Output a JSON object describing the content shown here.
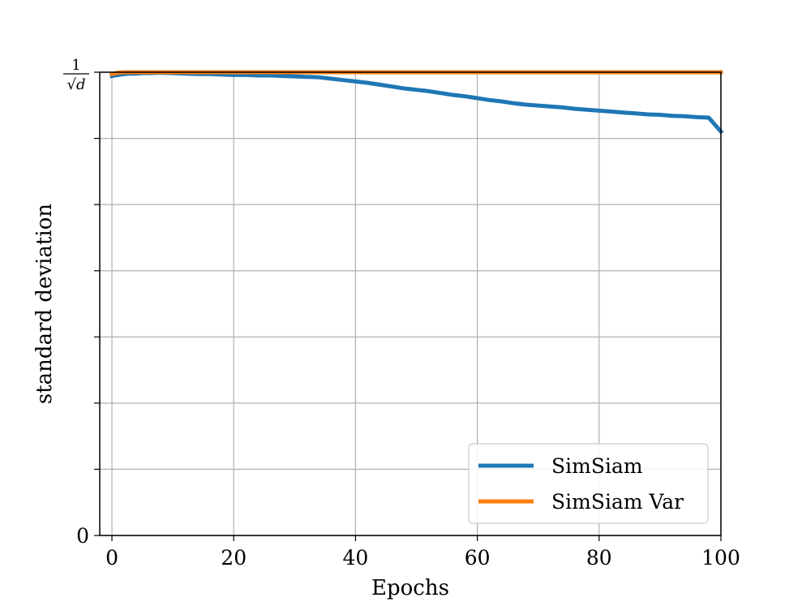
{
  "chart_data": {
    "type": "line",
    "title": "",
    "xlabel": "Epochs",
    "ylabel": "standard deviation",
    "xlim": [
      -2,
      100
    ],
    "ylim": [
      0,
      1
    ],
    "xticks": [
      0,
      20,
      40,
      60,
      80,
      100
    ],
    "yticks": [
      0,
      0.1429,
      0.2857,
      0.4286,
      0.5714,
      0.7143,
      0.8571,
      1
    ],
    "ytick_labels": {
      "bottom": "0",
      "top_numerator": "1",
      "top_denominator": "√d"
    },
    "grid": true,
    "legend_position": "lower-right",
    "series": [
      {
        "name": "SimSiam",
        "color": "#1f77b4",
        "points": [
          [
            0,
            0.992
          ],
          [
            1,
            0.994
          ],
          [
            2,
            0.996
          ],
          [
            3,
            0.997
          ],
          [
            4,
            0.997
          ],
          [
            5,
            0.998
          ],
          [
            6,
            0.998
          ],
          [
            8,
            0.999
          ],
          [
            10,
            0.998
          ],
          [
            12,
            0.997
          ],
          [
            14,
            0.996
          ],
          [
            16,
            0.996
          ],
          [
            18,
            0.995
          ],
          [
            20,
            0.994
          ],
          [
            22,
            0.994
          ],
          [
            24,
            0.993
          ],
          [
            26,
            0.993
          ],
          [
            28,
            0.992
          ],
          [
            30,
            0.991
          ],
          [
            32,
            0.99
          ],
          [
            34,
            0.989
          ],
          [
            36,
            0.986
          ],
          [
            38,
            0.983
          ],
          [
            40,
            0.98
          ],
          [
            42,
            0.977
          ],
          [
            44,
            0.973
          ],
          [
            46,
            0.969
          ],
          [
            48,
            0.965
          ],
          [
            50,
            0.962
          ],
          [
            52,
            0.959
          ],
          [
            54,
            0.955
          ],
          [
            56,
            0.951
          ],
          [
            58,
            0.948
          ],
          [
            60,
            0.944
          ],
          [
            62,
            0.94
          ],
          [
            64,
            0.937
          ],
          [
            66,
            0.933
          ],
          [
            68,
            0.93
          ],
          [
            70,
            0.928
          ],
          [
            72,
            0.926
          ],
          [
            74,
            0.924
          ],
          [
            76,
            0.921
          ],
          [
            78,
            0.919
          ],
          [
            80,
            0.917
          ],
          [
            82,
            0.915
          ],
          [
            84,
            0.913
          ],
          [
            86,
            0.911
          ],
          [
            88,
            0.909
          ],
          [
            90,
            0.908
          ],
          [
            92,
            0.906
          ],
          [
            94,
            0.905
          ],
          [
            96,
            0.903
          ],
          [
            98,
            0.902
          ],
          [
            100,
            0.872
          ]
        ]
      },
      {
        "name": "SimSiam Var",
        "color": "#ff7f0e",
        "points": [
          [
            0,
            0.996
          ],
          [
            1,
            0.999
          ],
          [
            2,
            1.0
          ],
          [
            10,
            1.0
          ],
          [
            20,
            1.0
          ],
          [
            30,
            1.0
          ],
          [
            40,
            1.0
          ],
          [
            50,
            1.0
          ],
          [
            60,
            1.0
          ],
          [
            70,
            1.0
          ],
          [
            80,
            1.0
          ],
          [
            90,
            1.0
          ],
          [
            100,
            1.0
          ]
        ]
      }
    ]
  }
}
